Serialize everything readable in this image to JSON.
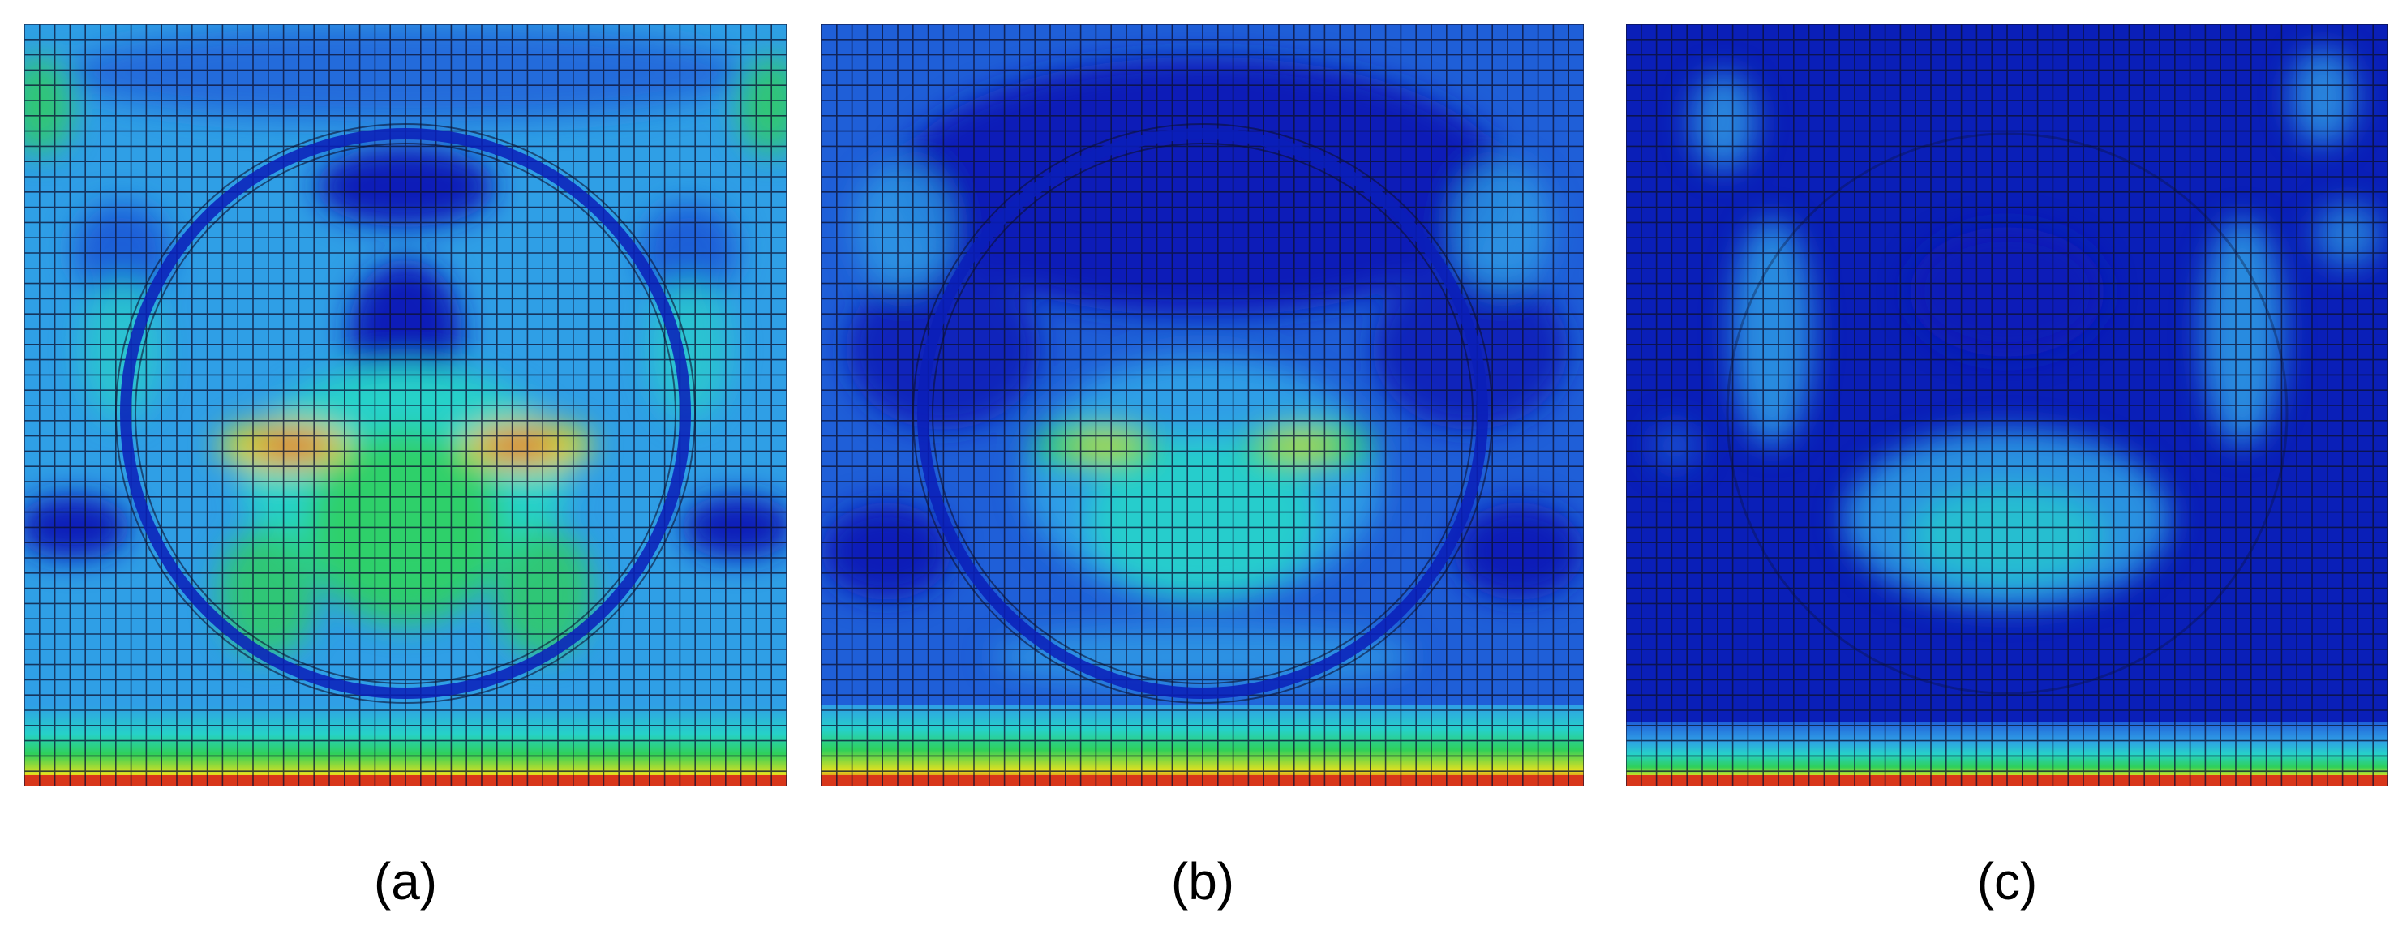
{
  "panels": [
    {
      "label": "(a)"
    },
    {
      "label": "(b)"
    },
    {
      "label": "(c)"
    }
  ],
  "colors": {
    "dark_blue": "#0a1fb8",
    "blue": "#1f5fd8",
    "light_blue": "#2f9fe6",
    "cyan": "#26d1c9",
    "green": "#2fd05a",
    "yellow": "#e0e020",
    "red": "#d8361a",
    "mesh_line": "#0c1030"
  }
}
